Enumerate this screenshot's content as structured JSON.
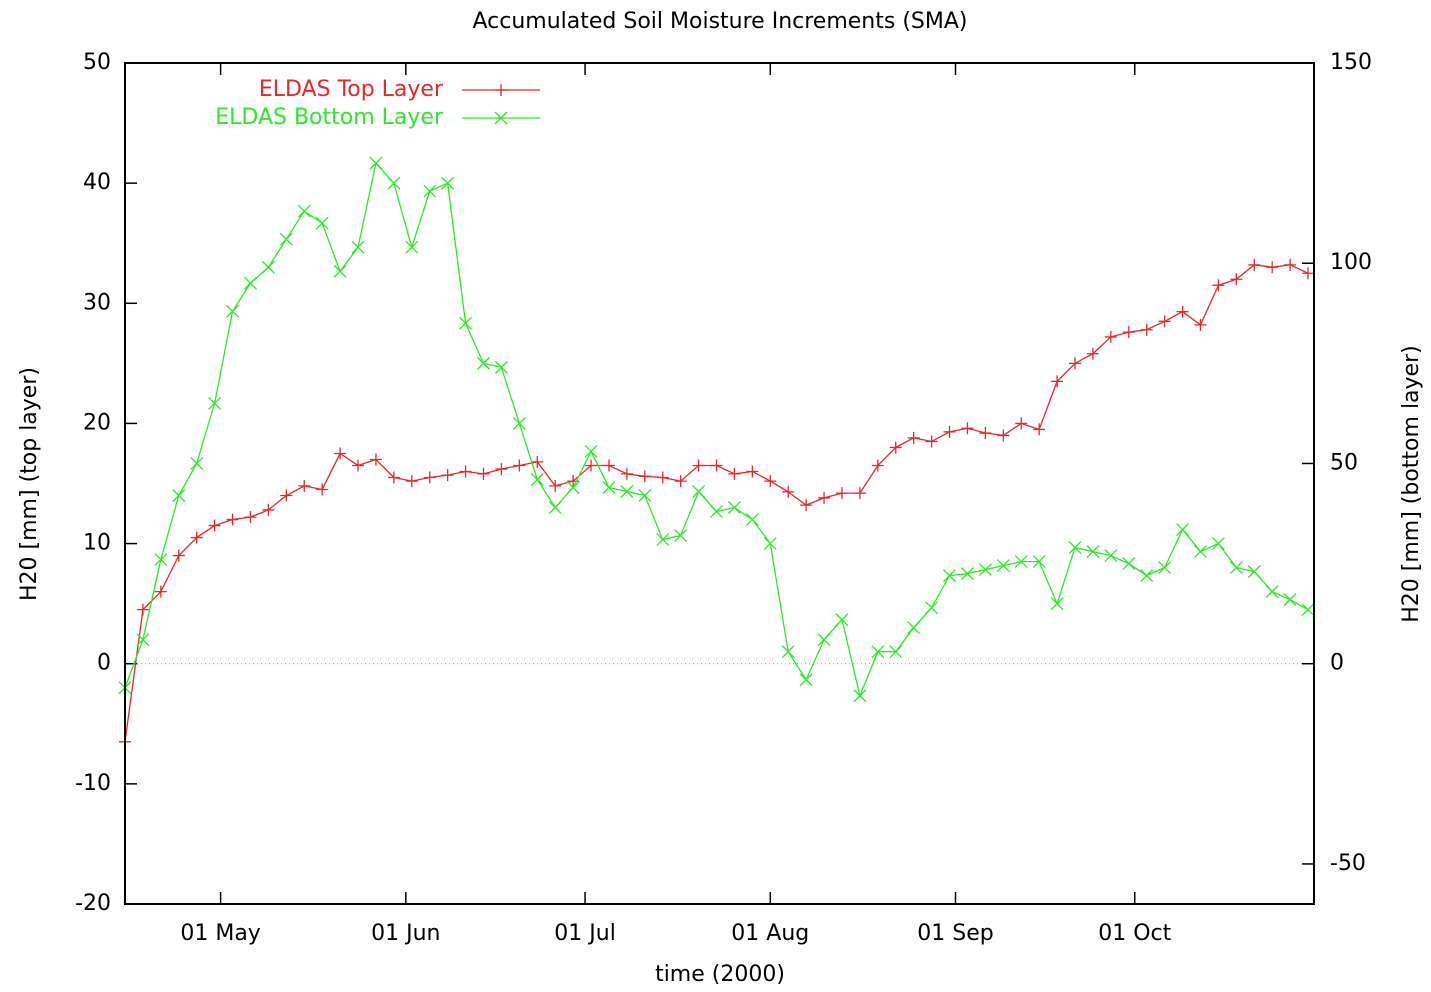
{
  "chart_data": {
    "type": "line",
    "title": "Accumulated Soil Moisture Increments (SMA)",
    "xlabel": "time (2000)",
    "ylabel": "H20 [mm] (top layer)",
    "y2label": "H20 [mm] (bottom layer)",
    "x": [
      "2000-04-15",
      "2000-04-18",
      "2000-04-21",
      "2000-04-24",
      "2000-04-27",
      "2000-04-30",
      "2000-05-03",
      "2000-05-06",
      "2000-05-09",
      "2000-05-12",
      "2000-05-15",
      "2000-05-18",
      "2000-05-21",
      "2000-05-24",
      "2000-05-27",
      "2000-05-30",
      "2000-06-02",
      "2000-06-05",
      "2000-06-08",
      "2000-06-11",
      "2000-06-14",
      "2000-06-17",
      "2000-06-20",
      "2000-06-23",
      "2000-06-26",
      "2000-06-29",
      "2000-07-02",
      "2000-07-05",
      "2000-07-08",
      "2000-07-11",
      "2000-07-14",
      "2000-07-17",
      "2000-07-20",
      "2000-07-23",
      "2000-07-26",
      "2000-07-29",
      "2000-08-01",
      "2000-08-04",
      "2000-08-07",
      "2000-08-10",
      "2000-08-13",
      "2000-08-16",
      "2000-08-19",
      "2000-08-22",
      "2000-08-25",
      "2000-08-28",
      "2000-08-31",
      "2000-09-03",
      "2000-09-06",
      "2000-09-09",
      "2000-09-12",
      "2000-09-15",
      "2000-09-18",
      "2000-09-21",
      "2000-09-24",
      "2000-09-27",
      "2000-09-30",
      "2000-10-03",
      "2000-10-06",
      "2000-10-09",
      "2000-10-12",
      "2000-10-15",
      "2000-10-18",
      "2000-10-21",
      "2000-10-24",
      "2000-10-27",
      "2000-10-30"
    ],
    "series": [
      {
        "name": "ELDAS Top Layer",
        "color": "#e8262b",
        "marker": "plus",
        "axis": "y",
        "values": [
          -6.5,
          4.5,
          6,
          9,
          10.5,
          11.5,
          12,
          12.2,
          12.8,
          14,
          14.8,
          14.5,
          17.5,
          16.5,
          17,
          15.5,
          15.2,
          15.5,
          15.7,
          16,
          15.8,
          16.2,
          16.5,
          16.8,
          14.8,
          15.2,
          16.5,
          16.5,
          15.8,
          15.6,
          15.5,
          15.2,
          16.5,
          16.5,
          15.8,
          16,
          15.2,
          14.3,
          13.2,
          13.8,
          14.2,
          14.2,
          16.5,
          18,
          18.8,
          18.5,
          19.3,
          19.6,
          19.2,
          19,
          20,
          19.5,
          23.5,
          25,
          25.8,
          27.2,
          27.6,
          27.8,
          28.5,
          29.3,
          28.2,
          31.5,
          32,
          33.2,
          33,
          33.2,
          32.5
        ]
      },
      {
        "name": "ELDAS Bottom Layer",
        "color": "#2de82b",
        "marker": "cross",
        "axis": "y2",
        "values": [
          -6,
          6,
          26,
          42,
          50,
          65,
          88,
          95,
          99,
          106,
          113,
          110,
          98,
          104,
          125,
          120,
          104,
          118,
          120,
          85,
          75,
          74,
          60,
          46,
          39,
          44,
          53,
          44,
          43,
          42,
          31,
          32,
          43,
          38,
          39,
          36,
          30,
          3,
          -4,
          6,
          11,
          -8,
          3,
          3,
          9,
          14,
          22,
          22.5,
          23.5,
          24.5,
          25.5,
          25.5,
          15,
          29,
          28,
          27,
          25,
          22,
          24,
          33.5,
          28,
          30,
          24,
          23,
          18,
          16,
          13.5
        ]
      }
    ],
    "xlim": [
      "2000-04-15",
      "2000-10-31"
    ],
    "xticks": [
      {
        "value": "2000-05-01",
        "label": "01 May"
      },
      {
        "value": "2000-06-01",
        "label": "01 Jun"
      },
      {
        "value": "2000-07-01",
        "label": "01 Jul"
      },
      {
        "value": "2000-08-01",
        "label": "01 Aug"
      },
      {
        "value": "2000-09-01",
        "label": "01 Sep"
      },
      {
        "value": "2000-10-01",
        "label": "01 Oct"
      }
    ],
    "ylim": [
      -20,
      50
    ],
    "yticks": [
      -20,
      -10,
      0,
      10,
      20,
      30,
      40,
      50
    ],
    "y2lim": [
      -60,
      150
    ],
    "y2ticks": [
      -50,
      0,
      50,
      100,
      150
    ],
    "zeroaxis": true,
    "legend": "top left"
  }
}
